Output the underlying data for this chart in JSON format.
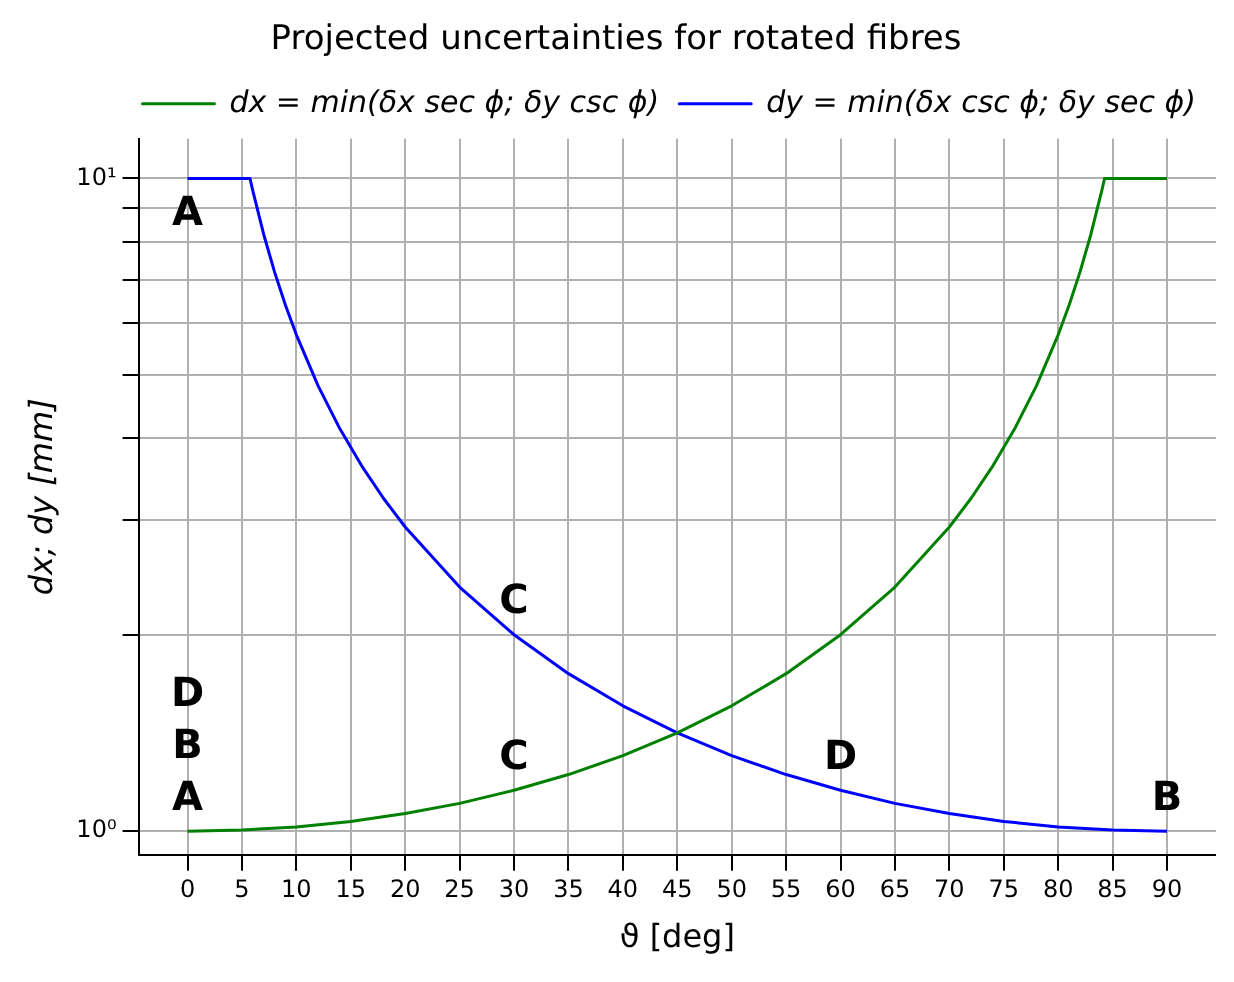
{
  "chart_data": {
    "type": "line",
    "title": "Projected uncertainties for rotated fibres",
    "xlabel": "ϑ [deg]",
    "ylabel": "dx; dy [mm]",
    "series": [
      {
        "name": "dx = min(δx sec ϕ; δy csc ϕ)",
        "color": "#008000",
        "x": [
          0,
          5,
          10,
          15,
          20,
          25,
          30,
          35,
          40,
          45,
          50,
          55,
          60,
          65,
          70,
          72,
          74,
          76,
          78,
          80,
          81,
          82,
          83,
          84,
          84.26,
          86,
          88,
          90
        ],
        "values": [
          1,
          1.004,
          1.015,
          1.035,
          1.064,
          1.103,
          1.155,
          1.221,
          1.305,
          1.414,
          1.556,
          1.743,
          2,
          2.366,
          2.924,
          3.236,
          3.628,
          4.134,
          4.81,
          5.759,
          6.392,
          7.185,
          8.206,
          9.567,
          10,
          10,
          10,
          10
        ]
      },
      {
        "name": "dy = min(δx csc ϕ; δy sec ϕ)",
        "color": "#0000ff",
        "x": [
          0,
          2,
          4,
          5.74,
          6,
          7,
          8,
          9,
          10,
          12,
          14,
          16,
          18,
          20,
          25,
          30,
          35,
          40,
          45,
          50,
          55,
          60,
          65,
          70,
          75,
          80,
          85,
          90
        ],
        "values": [
          10,
          10,
          10,
          10,
          9.567,
          8.206,
          7.185,
          6.392,
          5.759,
          4.81,
          4.134,
          3.628,
          3.236,
          2.924,
          2.366,
          2,
          1.743,
          1.556,
          1.414,
          1.305,
          1.221,
          1.155,
          1.103,
          1.064,
          1.035,
          1.015,
          1.004,
          1
        ]
      }
    ],
    "log": "y",
    "xlim": [
      -4.5,
      94.5
    ],
    "ylim": [
      0.92,
      11.5
    ],
    "xticks": [
      0,
      5,
      10,
      15,
      20,
      25,
      30,
      35,
      40,
      45,
      50,
      55,
      60,
      65,
      70,
      75,
      80,
      85,
      90
    ],
    "yticks": [
      {
        "value": 1,
        "label": "10⁰"
      },
      {
        "value": 2,
        "label": null
      },
      {
        "value": 3,
        "label": null
      },
      {
        "value": 4,
        "label": null
      },
      {
        "value": 5,
        "label": null
      },
      {
        "value": 6,
        "label": null
      },
      {
        "value": 7,
        "label": null
      },
      {
        "value": 8,
        "label": null
      },
      {
        "value": 9,
        "label": null
      },
      {
        "value": 10,
        "label": "10¹"
      }
    ],
    "grid": true,
    "legend": "top right",
    "marker": "none",
    "line_style": "solid",
    "annotations": [
      {
        "text": "A",
        "x": 0,
        "y": 10
      },
      {
        "text": "A",
        "x": 0,
        "y": 1
      },
      {
        "text": "B",
        "x": 0,
        "y": 1
      },
      {
        "text": "D",
        "x": 0,
        "y": 1
      },
      {
        "text": "C",
        "x": 30,
        "y": 2
      },
      {
        "text": "C",
        "x": 30,
        "y": 1.155
      },
      {
        "text": "D",
        "x": 60,
        "y": 1.155
      },
      {
        "text": "B",
        "x": 90,
        "y": 1
      }
    ]
  }
}
